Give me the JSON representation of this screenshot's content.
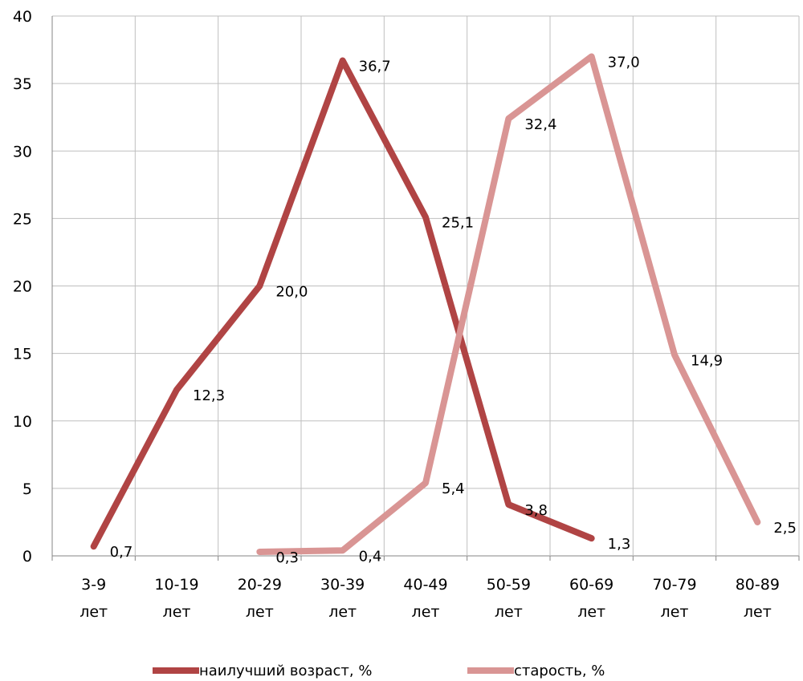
{
  "chart_data": {
    "type": "line",
    "title": "",
    "xlabel": "",
    "ylabel": "",
    "ylim": [
      0,
      40
    ],
    "yticks": [
      0,
      5,
      10,
      15,
      20,
      25,
      30,
      35,
      40
    ],
    "grid": true,
    "legend_position": "bottom",
    "categories": [
      [
        "3-9",
        "лет"
      ],
      [
        "10-19",
        "лет"
      ],
      [
        "20-29",
        "лет"
      ],
      [
        "30-39",
        "лет"
      ],
      [
        "40-49",
        "лет"
      ],
      [
        "50-59",
        "лет"
      ],
      [
        "60-69",
        "лет"
      ],
      [
        "70-79",
        "лет"
      ],
      [
        "80-89",
        "лет"
      ]
    ],
    "series": [
      {
        "name": "наилучший возраст, %",
        "color": "#b04444",
        "values": [
          0.7,
          12.3,
          20.0,
          36.7,
          25.1,
          3.8,
          1.3,
          null,
          null
        ],
        "labels": [
          "0,7",
          "12,3",
          "20,0",
          "36,7",
          "25,1",
          "3,8",
          "1,3",
          null,
          null
        ]
      },
      {
        "name": "старость, %",
        "color": "#d99594",
        "values": [
          null,
          null,
          0.3,
          0.4,
          5.4,
          32.4,
          37.0,
          14.9,
          2.5
        ],
        "labels": [
          null,
          null,
          "0,3",
          "0,4",
          "5,4",
          "32,4",
          "37,0",
          "14,9",
          "2,5"
        ]
      }
    ]
  }
}
